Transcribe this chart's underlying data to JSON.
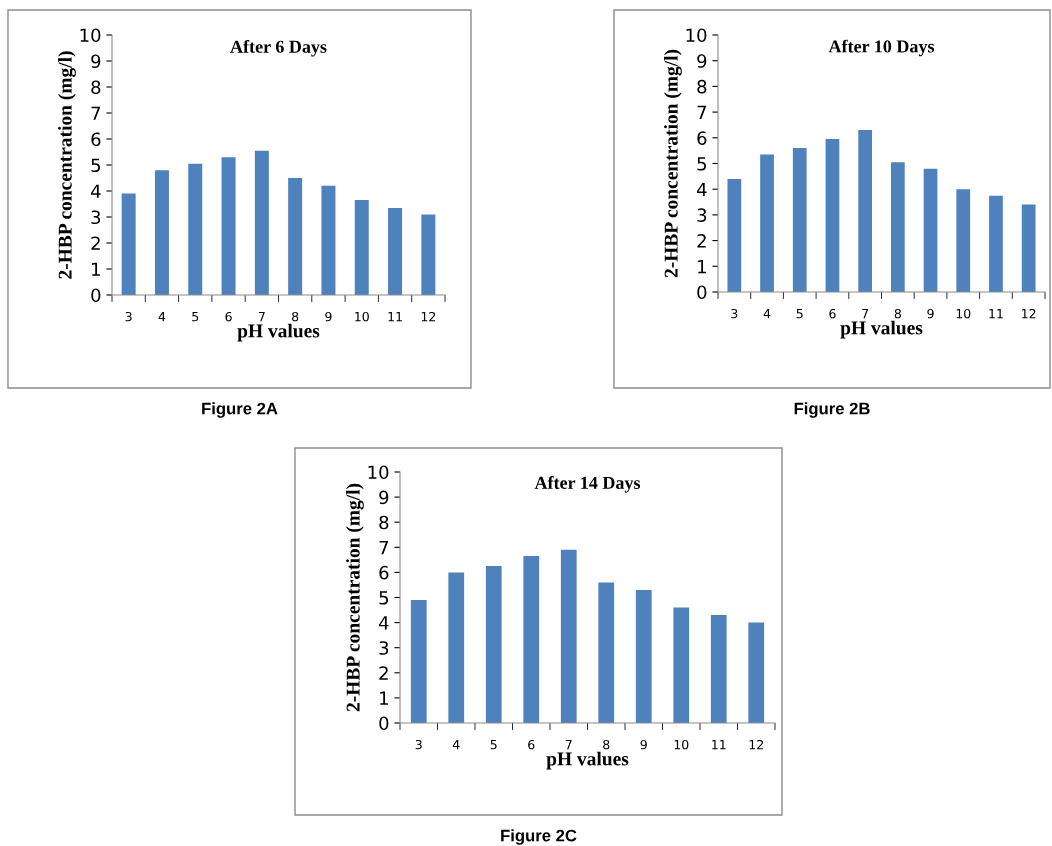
{
  "chart_data": [
    {
      "type": "bar",
      "title": "After 6 Days",
      "xlabel": "pH values",
      "ylabel": "2-HBP concentration (mg/l)",
      "categories": [
        "3",
        "4",
        "5",
        "6",
        "7",
        "8",
        "9",
        "10",
        "11",
        "12"
      ],
      "values": [
        3.9,
        4.8,
        5.05,
        5.3,
        5.55,
        4.5,
        4.2,
        3.65,
        3.35,
        3.1
      ],
      "color": "#4f81bd",
      "ylim": [
        0,
        10
      ],
      "yticks": [
        0,
        1,
        2,
        3,
        4,
        5,
        6,
        7,
        8,
        9,
        10
      ],
      "grid": false,
      "annotations": [
        "Figure 2A"
      ]
    },
    {
      "type": "bar",
      "title": "After 10 Days",
      "xlabel": "pH values",
      "ylabel": "2-HBP concentration (mg/l)",
      "categories": [
        "3",
        "4",
        "5",
        "6",
        "7",
        "8",
        "9",
        "10",
        "11",
        "12"
      ],
      "values": [
        4.4,
        5.35,
        5.6,
        5.95,
        6.3,
        5.05,
        4.8,
        4.0,
        3.75,
        3.4
      ],
      "color": "#4f81bd",
      "ylim": [
        0,
        10
      ],
      "yticks": [
        0,
        1,
        2,
        3,
        4,
        5,
        6,
        7,
        8,
        9,
        10
      ],
      "grid": false,
      "annotations": [
        "Figure 2B"
      ]
    },
    {
      "type": "bar",
      "title": "After 14 Days",
      "xlabel": "pH values",
      "ylabel": "2-HBP concentration (mg/l)",
      "categories": [
        "3",
        "4",
        "5",
        "6",
        "7",
        "8",
        "9",
        "10",
        "11",
        "12"
      ],
      "values": [
        4.9,
        6.0,
        6.25,
        6.65,
        6.9,
        5.6,
        5.3,
        4.6,
        4.3,
        4.0
      ],
      "color": "#4f81bd",
      "ylim": [
        0,
        10
      ],
      "yticks": [
        0,
        1,
        2,
        3,
        4,
        5,
        6,
        7,
        8,
        9,
        10
      ],
      "grid": false,
      "annotations": [
        "Figure 2C"
      ]
    }
  ]
}
